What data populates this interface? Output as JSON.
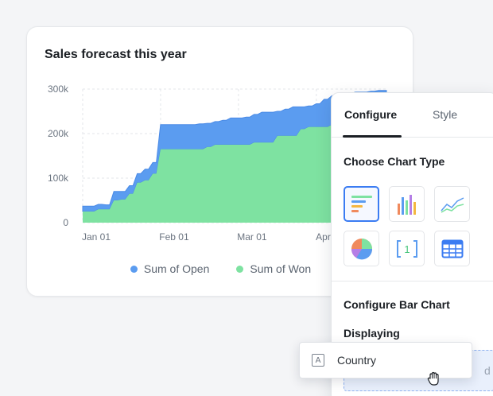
{
  "chart_card": {
    "title": "Sales forecast this year",
    "legend": [
      {
        "label": "Sum of Open",
        "color": "#5b9cf0"
      },
      {
        "label": "Sum of Won",
        "color": "#7ee2a1"
      }
    ]
  },
  "chart_data": {
    "type": "area",
    "title": "Sales forecast this year",
    "stacked": true,
    "x_tick_labels": [
      "Jan 01",
      "Feb 01",
      "Mar 01",
      "Apr 01"
    ],
    "y_tick_labels": [
      "0",
      "100k",
      "200k",
      "300k"
    ],
    "ylim": [
      0,
      300000
    ],
    "grid": true,
    "legend_position": "bottom",
    "x": [
      "Jan 01",
      "Jan 04",
      "Jan 07",
      "Jan 09",
      "Jan 12",
      "Jan 15",
      "Jan 18",
      "Jan 21",
      "Jan 24",
      "Jan 27",
      "Jan 30",
      "Feb 02",
      "Feb 05",
      "Feb 08",
      "Feb 11",
      "Feb 14",
      "Feb 17",
      "Feb 20",
      "Feb 23",
      "Feb 26",
      "Mar 01",
      "Mar 04",
      "Mar 07",
      "Mar 10",
      "Mar 13",
      "Mar 16",
      "Mar 19",
      "Mar 22",
      "Mar 25",
      "Mar 28",
      "Mar 31",
      "Apr 03",
      "Apr 06",
      "Apr 09",
      "Apr 12",
      "Apr 15",
      "Apr 18",
      "Apr 21",
      "Apr 24",
      "Apr 27"
    ],
    "series": [
      {
        "name": "Sum of Won",
        "color": "#7ee2a1",
        "values": [
          25000,
          25000,
          30000,
          30000,
          50000,
          52000,
          65000,
          90000,
          95000,
          110000,
          165000,
          165000,
          165000,
          165000,
          165000,
          165000,
          170000,
          175000,
          175000,
          175000,
          175000,
          175000,
          180000,
          180000,
          180000,
          195000,
          195000,
          195000,
          210000,
          215000,
          215000,
          215000,
          220000,
          225000,
          230000,
          235000,
          235000,
          235000,
          235000,
          235000
        ]
      },
      {
        "name": "Sum of Open",
        "color": "#5b9cf0",
        "values": [
          12000,
          12000,
          11000,
          10000,
          20000,
          18000,
          18000,
          20000,
          25000,
          25000,
          55000,
          55000,
          55000,
          55000,
          55000,
          57000,
          53000,
          52000,
          55000,
          60000,
          60000,
          62000,
          63000,
          68000,
          68000,
          55000,
          60000,
          65000,
          50000,
          47000,
          52000,
          62000,
          65000,
          62000,
          60000,
          58000,
          58000,
          60000,
          62000,
          62000
        ]
      }
    ]
  },
  "panel": {
    "tabs": [
      {
        "label": "Configure",
        "active": true
      },
      {
        "label": "Style",
        "active": false
      }
    ],
    "choose_title": "Choose Chart Type",
    "chart_types": [
      {
        "icon": "bar-chart-icon",
        "selected": true
      },
      {
        "icon": "column-chart-icon",
        "selected": false
      },
      {
        "icon": "line-chart-icon",
        "selected": false
      },
      {
        "icon": "pie-chart-icon",
        "selected": false
      },
      {
        "icon": "number-chart-icon",
        "selected": false
      },
      {
        "icon": "table-chart-icon",
        "selected": false
      }
    ],
    "configure_title": "Configure Bar Chart",
    "displaying_label": "Displaying",
    "drop_hint": "d he"
  },
  "drag_chip": {
    "icon_glyph": "A",
    "label": "Country"
  }
}
